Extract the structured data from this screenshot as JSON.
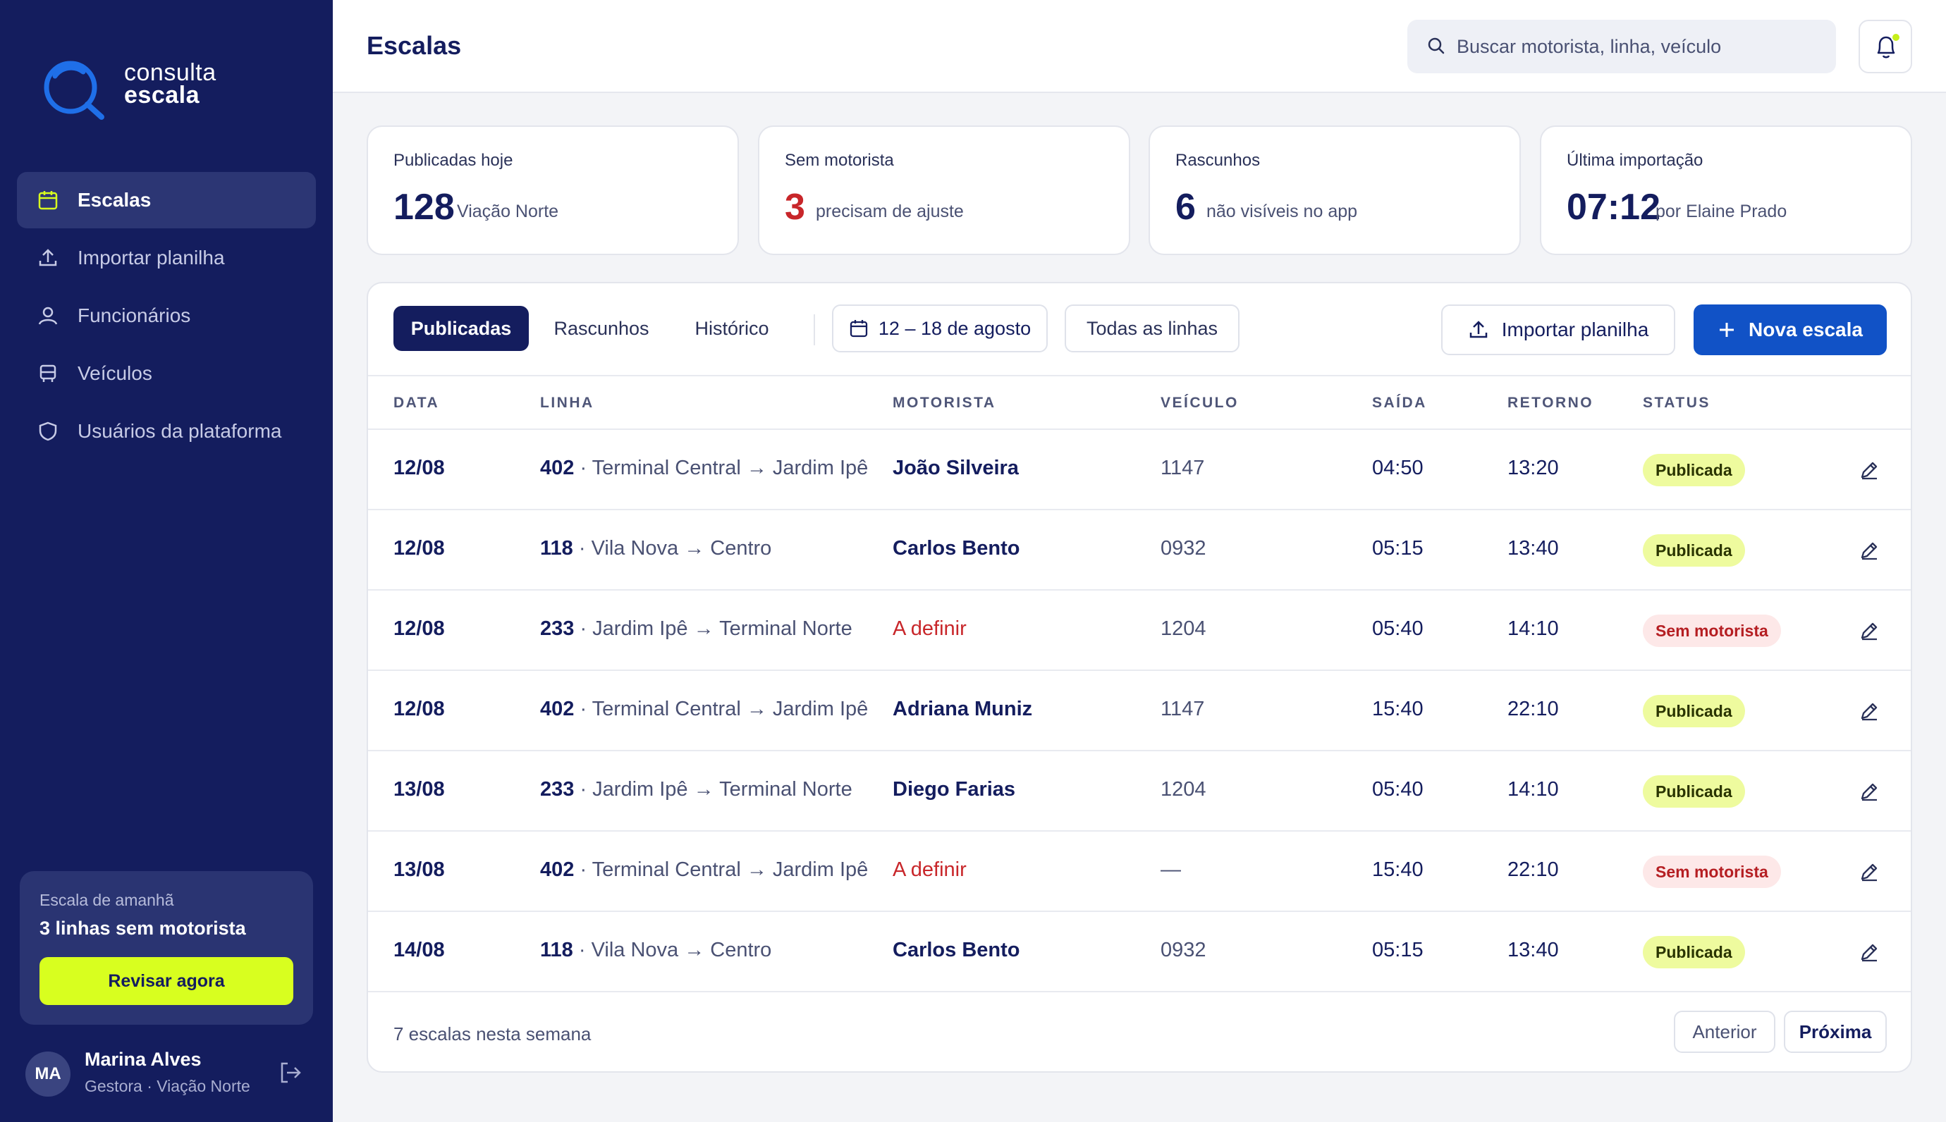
{
  "brand": {
    "line1": "consulta",
    "line2": "escala"
  },
  "sidebar": {
    "items": [
      {
        "label": "Escalas",
        "icon": "calendar-icon",
        "active": true
      },
      {
        "label": "Importar planilha",
        "icon": "upload-icon"
      },
      {
        "label": "Funcionários",
        "icon": "user-icon"
      },
      {
        "label": "Veículos",
        "icon": "bus-icon"
      },
      {
        "label": "Usuários da plataforma",
        "icon": "shield-icon"
      }
    ],
    "promo": {
      "subtitle": "Escala de amanhã",
      "title": "3 linhas sem motorista",
      "button": "Revisar agora"
    },
    "user": {
      "initials": "MA",
      "name": "Marina Alves",
      "role": "Gestora · Viação Norte"
    }
  },
  "header": {
    "title": "Escalas",
    "search_placeholder": "Buscar motorista, linha, veículo"
  },
  "stats": [
    {
      "label": "Publicadas hoje",
      "value": "128",
      "note": "Viação Norte"
    },
    {
      "label": "Sem motorista",
      "value": "3",
      "note": "precisam de ajuste"
    },
    {
      "label": "Rascunhos",
      "value": "6",
      "note": "não visíveis no app"
    },
    {
      "label": "Última importação",
      "value": "07:12",
      "note": "por Elaine Prado"
    }
  ],
  "toolbar": {
    "tabs": [
      "Publicadas",
      "Rascunhos",
      "Histórico"
    ],
    "date_range": "12 – 18 de agosto",
    "lines_filter": "Todas as linhas",
    "import_button": "Importar planilha",
    "new_button": "Nova escala"
  },
  "table": {
    "columns": [
      "DATA",
      "LINHA",
      "MOTORISTA",
      "VEÍCULO",
      "SAÍDA",
      "RETORNO",
      "STATUS"
    ],
    "rows": [
      {
        "date": "12/08",
        "line_num": "402",
        "line_route": " · Terminal Central → Jardim Ipê",
        "driver": "João Silveira",
        "vehicle": "1147",
        "departure": "04:50",
        "return": "13:20",
        "status": "Publicada"
      },
      {
        "date": "12/08",
        "line_num": "118",
        "line_route": " · Vila Nova → Centro",
        "driver": "Carlos Bento",
        "vehicle": "0932",
        "departure": "05:15",
        "return": "13:40",
        "status": "Publicada"
      },
      {
        "date": "12/08",
        "line_num": "233",
        "line_route": " · Jardim Ipê → Terminal Norte",
        "driver": "A definir",
        "vehicle": "1204",
        "departure": "05:40",
        "return": "14:10",
        "status": "Sem motorista"
      },
      {
        "date": "12/08",
        "line_num": "402",
        "line_route": " · Terminal Central → Jardim Ipê",
        "driver": "Adriana Muniz",
        "vehicle": "1147",
        "departure": "15:40",
        "return": "22:10",
        "status": "Publicada"
      },
      {
        "date": "13/08",
        "line_num": "233",
        "line_route": " · Jardim Ipê → Terminal Norte",
        "driver": "Diego Farias",
        "vehicle": "1204",
        "departure": "05:40",
        "return": "14:10",
        "status": "Publicada"
      },
      {
        "date": "13/08",
        "line_num": "402",
        "line_route": " · Terminal Central → Jardim Ipê",
        "driver": "A definir",
        "vehicle": "—",
        "departure": "15:40",
        "return": "22:10",
        "status": "Sem motorista"
      },
      {
        "date": "14/08",
        "line_num": "118",
        "line_route": " · Vila Nova → Centro",
        "driver": "Carlos Bento",
        "vehicle": "0932",
        "departure": "05:15",
        "return": "13:40",
        "status": "Publicada"
      }
    ]
  },
  "footer": {
    "summary": "7 escalas nesta semana",
    "prev": "Anterior",
    "next": "Próxima"
  },
  "colors": {
    "sidebar_bg": "#141d5e",
    "accent_lime": "#d8ff1f",
    "primary_blue": "#1152c6",
    "alert_red": "#c8262a"
  }
}
